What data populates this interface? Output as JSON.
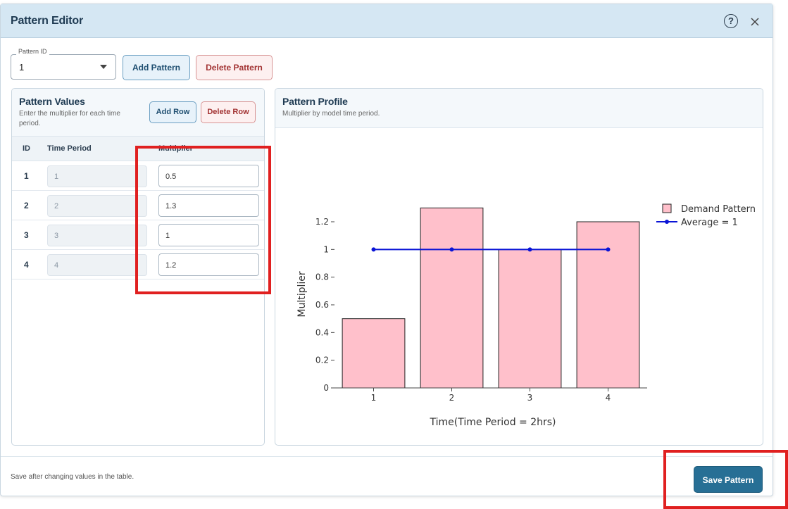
{
  "dialog": {
    "title": "Pattern Editor",
    "help_icon": "help-circle-icon",
    "close_icon": "close-icon"
  },
  "toolbar": {
    "pattern_id_label": "Pattern ID",
    "pattern_id_value": "1",
    "add_pattern_label": "Add Pattern",
    "delete_pattern_label": "Delete Pattern"
  },
  "values_panel": {
    "title": "Pattern Values",
    "description": "Enter the multiplier for each time period.",
    "add_row_label": "Add Row",
    "delete_row_label": "Delete Row",
    "columns": [
      "ID",
      "Time Period",
      "Multiplier"
    ],
    "rows": [
      {
        "id": "1",
        "time_period": "1",
        "multiplier": "0.5"
      },
      {
        "id": "2",
        "time_period": "2",
        "multiplier": "1.3"
      },
      {
        "id": "3",
        "time_period": "3",
        "multiplier": "1"
      },
      {
        "id": "4",
        "time_period": "4",
        "multiplier": "1.2"
      }
    ]
  },
  "profile_panel": {
    "title": "Pattern Profile",
    "description": "Multiplier by model time period."
  },
  "chart_data": {
    "type": "bar",
    "categories": [
      "1",
      "2",
      "3",
      "4"
    ],
    "series": [
      {
        "name": "Demand Pattern",
        "type": "bar",
        "values": [
          0.5,
          1.3,
          1,
          1.2
        ],
        "color": "#ffc0cb"
      },
      {
        "name": "Average = 1",
        "type": "line",
        "values": [
          1,
          1,
          1,
          1
        ],
        "color": "#0a14d6"
      }
    ],
    "xlabel": "Time(Time Period = 2hrs)",
    "ylabel": "Multiplier",
    "ylim": [
      0,
      1.3
    ],
    "yticks": [
      "0",
      "0.2",
      "0.4",
      "0.6",
      "0.8",
      "1",
      "1.2"
    ],
    "legend_position": "top-right",
    "grid": false
  },
  "footer": {
    "hint": "Save after changing values in the table.",
    "save_label": "Save Pattern"
  },
  "colors": {
    "accent": "#276f95",
    "highlight": "#e02020",
    "header_bg": "#d5e7f3"
  }
}
